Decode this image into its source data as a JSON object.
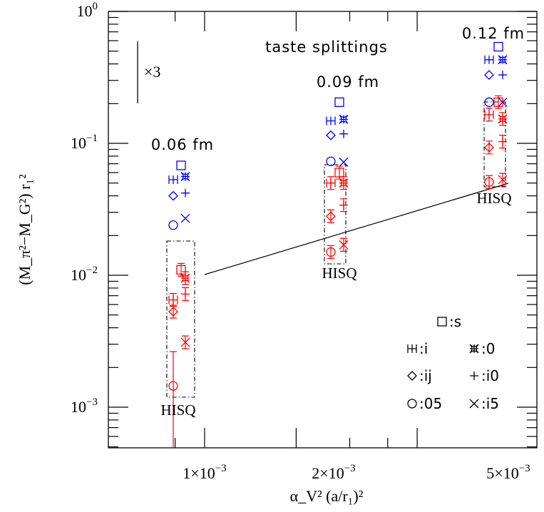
{
  "chart_data": {
    "type": "scatter",
    "title": "taste splittings",
    "ylabel": "(M_π²−M_G²) r₁²",
    "xlabel": "α_V² (a/r₁)²",
    "y_scale": "log",
    "ylim": [
      0.0005,
      1
    ],
    "grid": false,
    "y_ticks": [
      {
        "value": 1,
        "mant": "10",
        "exp": "0"
      },
      {
        "value": 0.1,
        "mant": "10",
        "exp": "−1"
      },
      {
        "value": 0.01,
        "mant": "10",
        "exp": "−2"
      },
      {
        "value": 0.001,
        "mant": "10",
        "exp": "−3"
      }
    ],
    "x_ticks": [
      {
        "label": "1×10",
        "exp": "−3"
      },
      {
        "label": "2×10",
        "exp": "−3"
      },
      {
        "label": "5×10",
        "exp": "−3"
      }
    ],
    "scale_bar_label": "×3",
    "lattice_labels": [
      "0.06 fm",
      "0.09 fm",
      "0.12 fm"
    ],
    "hisq_label": "HISQ",
    "colors": {
      "asqtad": "#0000ff",
      "hisq": "#ff0000",
      "axes": "#000000"
    },
    "legend": [
      {
        "symbol": "square",
        "label": ":s"
      },
      {
        "symbol": "plus-bar",
        "label": ":i"
      },
      {
        "symbol": "concave",
        "label": ":0"
      },
      {
        "symbol": "diamond",
        "label": ":ij"
      },
      {
        "symbol": "plus",
        "label": ":i0"
      },
      {
        "symbol": "circle",
        "label": ":05"
      },
      {
        "symbol": "cross",
        "label": ":i5"
      }
    ],
    "groups": [
      {
        "lattice": "0.06 fm",
        "asqtad": [
          {
            "taste": "s",
            "y": 0.068
          },
          {
            "taste": "i",
            "y": 0.053
          },
          {
            "taste": "0",
            "y": 0.056
          },
          {
            "taste": "ij",
            "y": 0.04
          },
          {
            "taste": "i0",
            "y": 0.042
          },
          {
            "taste": "05",
            "y": 0.024
          },
          {
            "taste": "i5",
            "y": 0.027
          }
        ],
        "hisq": [
          {
            "taste": "s",
            "y": 0.011
          },
          {
            "taste": "i",
            "y": 0.0065
          },
          {
            "taste": "0",
            "y": 0.0095
          },
          {
            "taste": "ij",
            "y": 0.0053
          },
          {
            "taste": "i0",
            "y": 0.0072
          },
          {
            "taste": "05",
            "y": 0.00145
          },
          {
            "taste": "i5",
            "y": 0.0031
          }
        ]
      },
      {
        "lattice": "0.09 fm",
        "asqtad": [
          {
            "taste": "s",
            "y": 0.205
          },
          {
            "taste": "i",
            "y": 0.148
          },
          {
            "taste": "0",
            "y": 0.152
          },
          {
            "taste": "ij",
            "y": 0.115
          },
          {
            "taste": "i0",
            "y": 0.118
          },
          {
            "taste": "05",
            "y": 0.073
          },
          {
            "taste": "i5",
            "y": 0.072
          }
        ],
        "hisq": [
          {
            "taste": "s",
            "y": 0.06
          },
          {
            "taste": "i",
            "y": 0.05
          },
          {
            "taste": "0",
            "y": 0.05
          },
          {
            "taste": "ij",
            "y": 0.028
          },
          {
            "taste": "i0",
            "y": 0.034
          },
          {
            "taste": "05",
            "y": 0.015
          },
          {
            "taste": "i5",
            "y": 0.017
          }
        ]
      },
      {
        "lattice": "0.12 fm",
        "asqtad": [
          {
            "taste": "s",
            "y": 0.54
          },
          {
            "taste": "i",
            "y": 0.43
          },
          {
            "taste": "0",
            "y": 0.43
          },
          {
            "taste": "ij",
            "y": 0.33
          },
          {
            "taste": "i0",
            "y": 0.33
          },
          {
            "taste": "05",
            "y": 0.205
          },
          {
            "taste": "i5",
            "y": 0.205
          }
        ],
        "hisq": [
          {
            "taste": "s",
            "y": 0.205
          },
          {
            "taste": "i",
            "y": 0.165
          },
          {
            "taste": "0",
            "y": 0.153
          },
          {
            "taste": "ij",
            "y": 0.093
          },
          {
            "taste": "i0",
            "y": 0.103
          },
          {
            "taste": "05",
            "y": 0.051
          },
          {
            "taste": "i5",
            "y": 0.053
          }
        ]
      }
    ]
  }
}
